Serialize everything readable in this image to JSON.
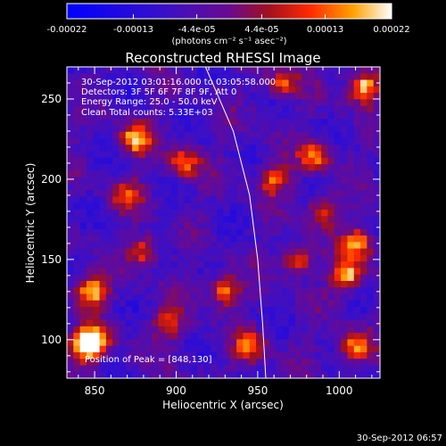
{
  "chart_data": {
    "type": "heatmap",
    "title": "Reconstructed RHESSI Image",
    "xlabel": "Heliocentric X (arcsec)",
    "ylabel": "Heliocentric Y (arcsec)",
    "xlim": [
      833,
      1025
    ],
    "ylim": [
      76,
      270
    ],
    "x_ticks": [
      850,
      900,
      950,
      1000
    ],
    "y_ticks": [
      100,
      150,
      200,
      250
    ],
    "x_tick_labels": [
      "850",
      "900",
      "950",
      "1000"
    ],
    "y_tick_labels": [
      "100",
      "150",
      "200",
      "250"
    ],
    "colorbar": {
      "ticks": [
        -0.00022,
        -0.00013,
        -4.4e-05,
        4.4e-05,
        0.00013,
        0.00022
      ],
      "tick_labels": [
        "-0.00022",
        "-0.00013",
        "-4.4e-05",
        "4.4e-05",
        "0.00013",
        "0.00022"
      ],
      "unit_label": "(photons cm⁻² s⁻¹ asec⁻²)",
      "range": [
        -0.00022,
        0.00022
      ]
    },
    "info_lines": [
      "30-Sep-2012 03:01:16.000 to 03:05:58.000",
      "Detectors: 3F 5F 6F 7F 8F 9F, Att 0",
      "Energy Range: 25.0 - 50.0 keV",
      "Clean     Total counts: 5.33E+03"
    ],
    "peak_label": "Position of Peak = [848,130]",
    "limb_curve": [
      [
        918,
        270
      ],
      [
        935,
        230
      ],
      [
        945,
        190
      ],
      [
        950,
        150
      ],
      [
        953,
        110
      ],
      [
        955,
        76
      ]
    ],
    "hot_spots": [
      {
        "x": 848,
        "y": 130,
        "strength": 1.0
      },
      {
        "x": 850,
        "y": 100,
        "strength": 0.9
      },
      {
        "x": 843,
        "y": 95,
        "strength": 0.85
      },
      {
        "x": 875,
        "y": 225,
        "strength": 0.9
      },
      {
        "x": 880,
        "y": 155,
        "strength": 0.7
      },
      {
        "x": 1015,
        "y": 258,
        "strength": 1.0
      },
      {
        "x": 1005,
        "y": 140,
        "strength": 0.95
      },
      {
        "x": 1012,
        "y": 160,
        "strength": 0.8
      },
      {
        "x": 1010,
        "y": 95,
        "strength": 0.9
      },
      {
        "x": 930,
        "y": 130,
        "strength": 0.85
      },
      {
        "x": 960,
        "y": 200,
        "strength": 0.7
      },
      {
        "x": 975,
        "y": 150,
        "strength": 0.7
      },
      {
        "x": 985,
        "y": 215,
        "strength": 0.75
      },
      {
        "x": 905,
        "y": 210,
        "strength": 0.7
      },
      {
        "x": 965,
        "y": 260,
        "strength": 0.65
      },
      {
        "x": 945,
        "y": 95,
        "strength": 0.7
      },
      {
        "x": 895,
        "y": 110,
        "strength": 0.6
      },
      {
        "x": 990,
        "y": 180,
        "strength": 0.65
      },
      {
        "x": 870,
        "y": 190,
        "strength": 0.55
      }
    ]
  },
  "timestamp": "30-Sep-2012 06:57"
}
